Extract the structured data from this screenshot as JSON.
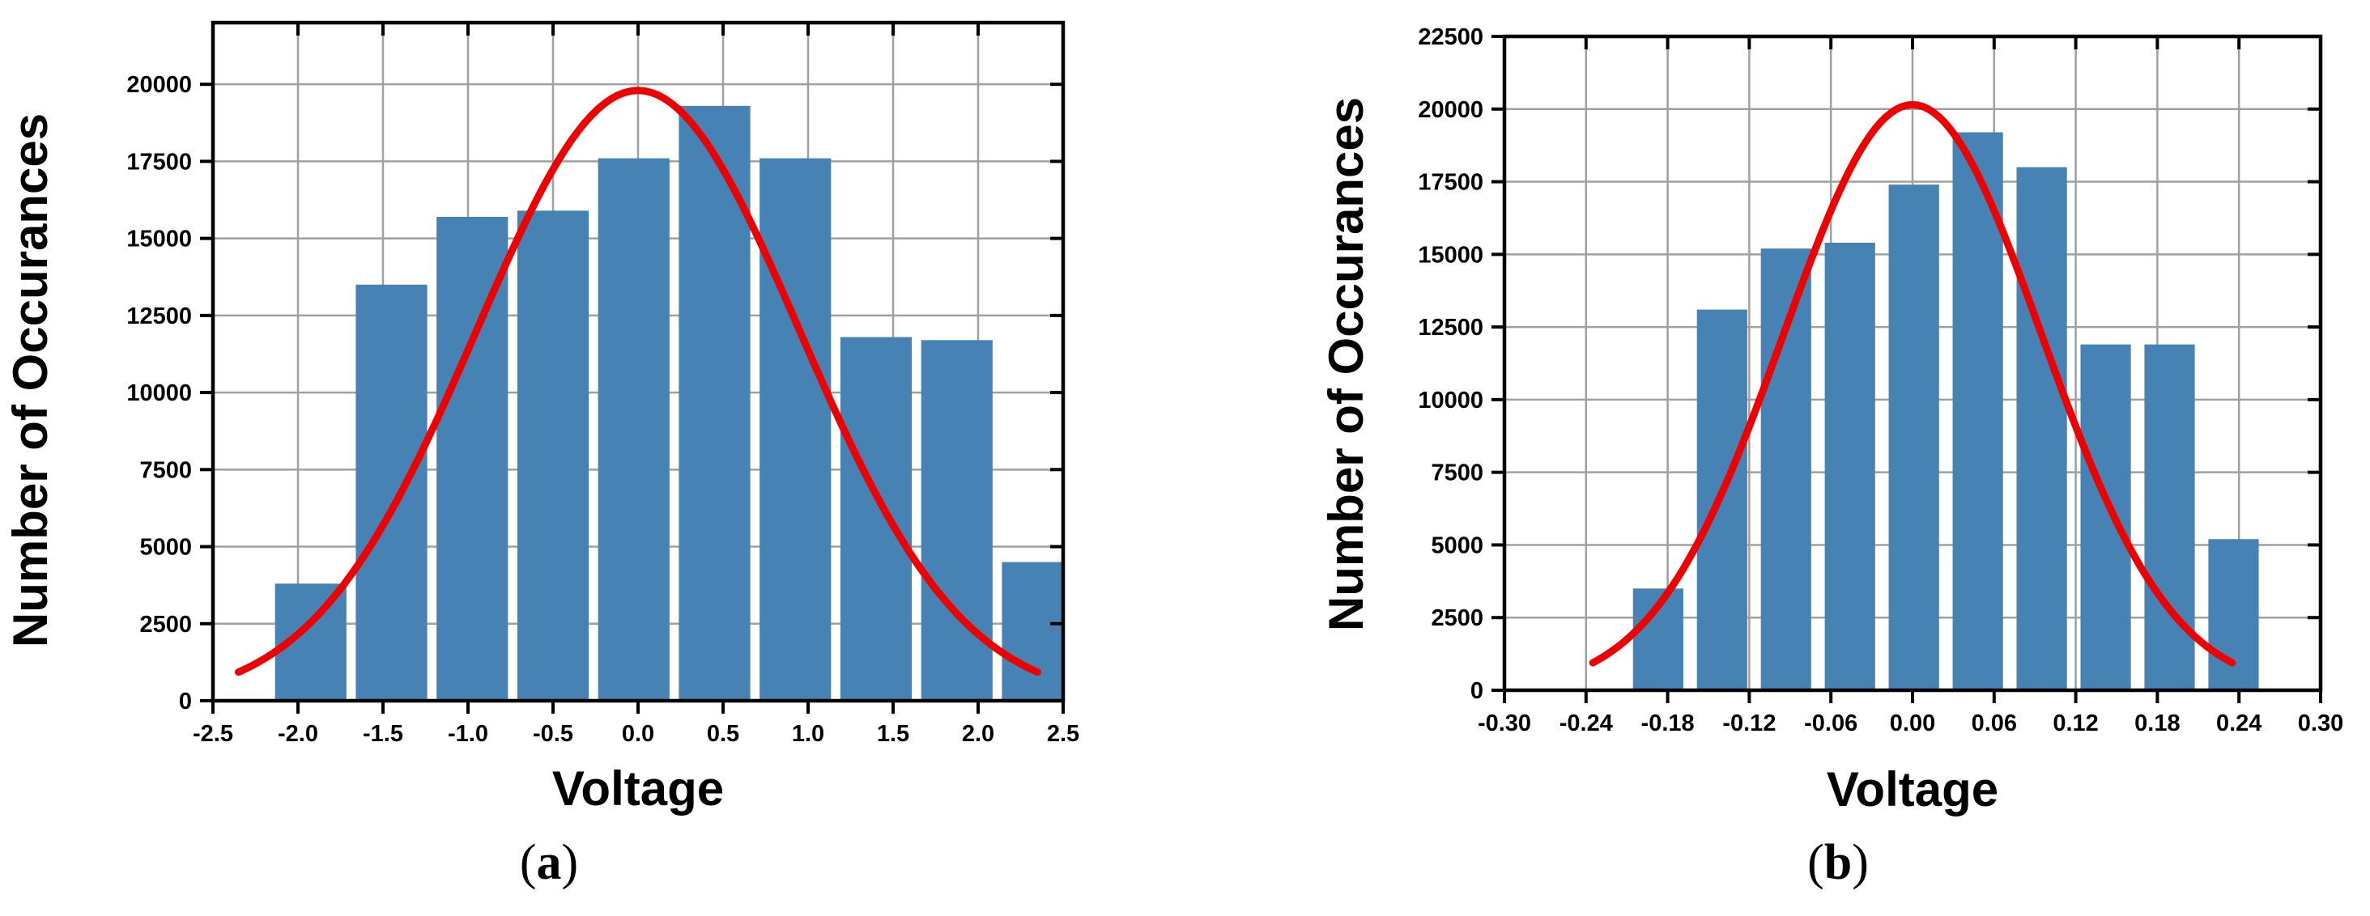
{
  "charts": {
    "a": {
      "panel_label_open": "(",
      "panel_label_letter": "a",
      "panel_label_close": ")"
    },
    "b": {
      "panel_label_open": "(",
      "panel_label_letter": "b",
      "panel_label_close": ")"
    }
  },
  "colors": {
    "bar": "#4682b4",
    "curve": "#ee0000",
    "grid": "#a0a0a0",
    "axis": "#000000"
  },
  "chart_data": [
    {
      "type": "bar",
      "panel": "a",
      "xlabel": "Voltage",
      "ylabel": "Number of Occurances",
      "xlim": [
        -2.5,
        2.5
      ],
      "ylim": [
        0,
        22000
      ],
      "xticks": [
        -2.5,
        -2.0,
        -1.5,
        -1.0,
        -0.5,
        0.0,
        0.5,
        1.0,
        1.5,
        2.0,
        2.5
      ],
      "xtick_labels": [
        "-2.5",
        "-2.0",
        "-1.5",
        "-1.0",
        "-0.5",
        "0.0",
        "0.5",
        "1.0",
        "1.5",
        "2.0",
        "2.5"
      ],
      "yticks": [
        0,
        2500,
        5000,
        7500,
        10000,
        12500,
        15000,
        17500,
        20000
      ],
      "ytick_labels": [
        "0",
        "2500",
        "5000",
        "7500",
        "10000",
        "12500",
        "15000",
        "17500",
        "20000"
      ],
      "grid": true,
      "bar_width": 0.42,
      "bins": [
        -1.925,
        -1.45,
        -0.975,
        -0.5,
        -0.025,
        0.45,
        0.925,
        1.4,
        1.875,
        2.35
      ],
      "values": [
        3800,
        13500,
        15700,
        15900,
        17600,
        19300,
        17600,
        11800,
        11700,
        4500
      ],
      "fit_curve": {
        "type": "gaussian",
        "amplitude": 19800,
        "mean": 0.0,
        "sigma": 0.95,
        "x_range": [
          -2.35,
          2.35
        ]
      }
    },
    {
      "type": "bar",
      "panel": "b",
      "xlabel": "Voltage",
      "ylabel": "Number of Occurances",
      "xlim": [
        -0.3,
        0.3
      ],
      "ylim": [
        0,
        22500
      ],
      "xticks": [
        -0.3,
        -0.24,
        -0.18,
        -0.12,
        -0.06,
        0.0,
        0.06,
        0.12,
        0.18,
        0.24,
        0.3
      ],
      "xtick_labels": [
        "-0.30",
        "-0.24",
        "-0.18",
        "-0.12",
        "-0.06",
        "0.00",
        "0.06",
        "0.12",
        "0.18",
        "0.24",
        "0.30"
      ],
      "yticks": [
        0,
        2500,
        5000,
        7500,
        10000,
        12500,
        15000,
        17500,
        20000,
        22500
      ],
      "ytick_labels": [
        "0",
        "2500",
        "5000",
        "7500",
        "10000",
        "12500",
        "15000",
        "17500",
        "20000",
        "22500"
      ],
      "grid": true,
      "bar_width": 0.037,
      "bins": [
        -0.187,
        -0.14,
        -0.093,
        -0.046,
        0.001,
        0.048,
        0.095,
        0.142,
        0.189,
        0.236
      ],
      "values": [
        3500,
        13100,
        15200,
        15400,
        17400,
        19200,
        18000,
        11900,
        11900,
        5200
      ],
      "fit_curve": {
        "type": "gaussian",
        "amplitude": 20150,
        "mean": 0.0,
        "sigma": 0.095,
        "x_range": [
          -0.235,
          0.235
        ]
      }
    }
  ]
}
